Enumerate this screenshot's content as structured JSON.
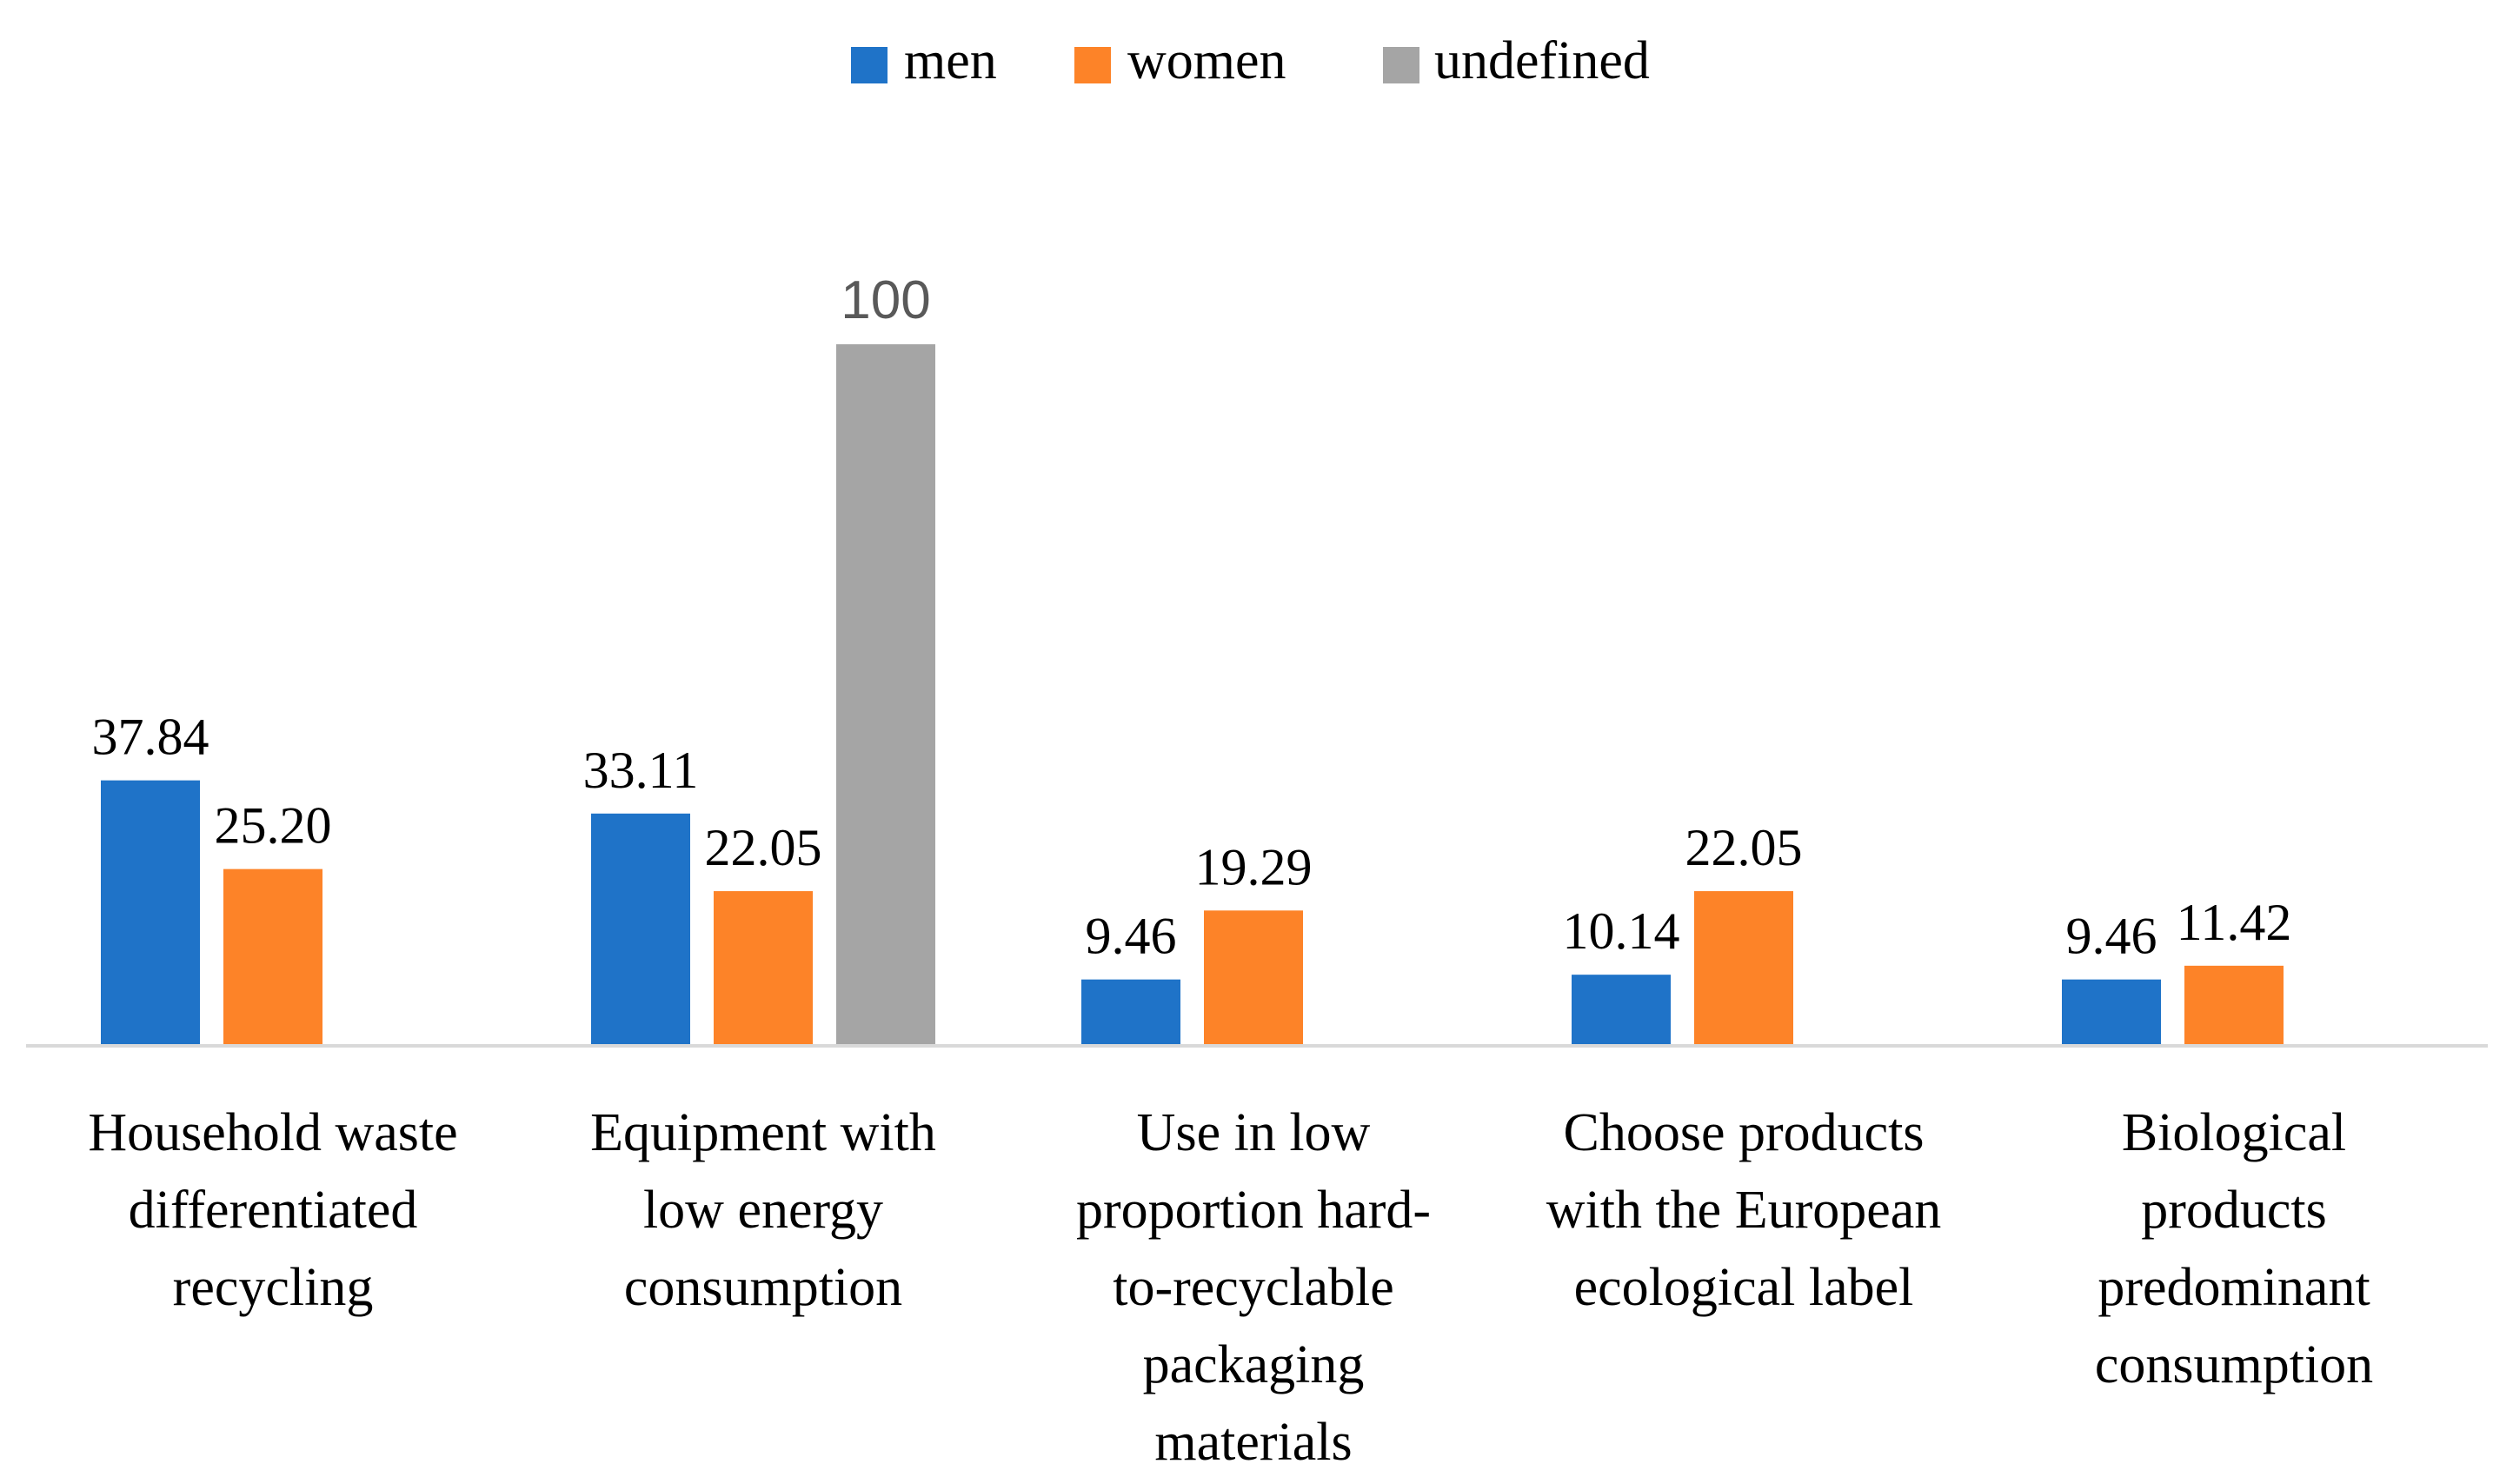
{
  "chart_data": {
    "type": "bar",
    "title": "",
    "xlabel": "",
    "ylabel": "",
    "ylim": [
      0,
      100
    ],
    "grid": false,
    "legend_position": "top-center",
    "categories": [
      "Household waste differentiated recycling",
      "Equipment with low energy consumption",
      "Use in low proportion hard-to-recyclable packaging materials",
      "Choose products with the European ecological label",
      "Biological products predominant consumption"
    ],
    "category_label_lines": [
      [
        "Household waste",
        "differentiated",
        "recycling"
      ],
      [
        "Equipment with",
        "low energy",
        "consumption"
      ],
      [
        "Use in low",
        "proportion hard-",
        "to-recyclable",
        "packaging",
        "materials"
      ],
      [
        "Choose products",
        "with the European",
        "ecological label"
      ],
      [
        "Biological",
        "products",
        "predominant",
        "consumption"
      ]
    ],
    "series": [
      {
        "name": "men",
        "color": "#1f73c8",
        "values": [
          37.84,
          33.11,
          9.46,
          10.14,
          9.46
        ],
        "labels": [
          "37.84",
          "33.11",
          "9.46",
          "10.14",
          "9.46"
        ]
      },
      {
        "name": "women",
        "color": "#fd8328",
        "values": [
          25.2,
          22.05,
          19.29,
          22.05,
          11.42
        ],
        "labels": [
          "25.20",
          "22.05",
          "19.29",
          "22.05",
          "11.42"
        ]
      },
      {
        "name": "undefined",
        "color": "#a5a5a5",
        "values": [
          null,
          100,
          null,
          null,
          null
        ],
        "labels": [
          null,
          "100",
          null,
          null,
          null
        ]
      }
    ]
  }
}
